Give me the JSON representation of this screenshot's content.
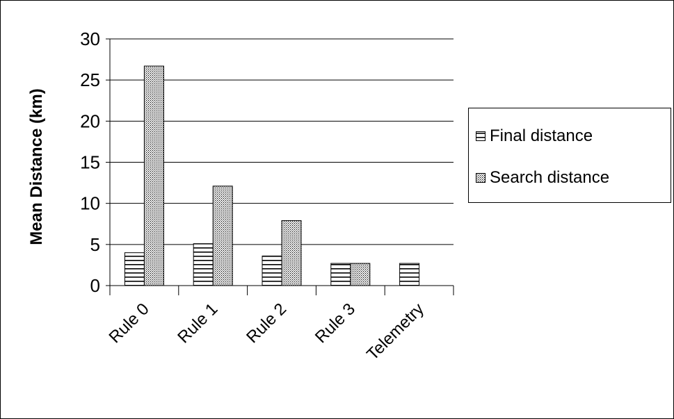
{
  "chart_data": {
    "type": "bar",
    "title": "",
    "xlabel": "",
    "ylabel": "Mean Distance (km)",
    "ylim": [
      0,
      30
    ],
    "yticks": [
      0,
      5,
      10,
      15,
      20,
      25,
      30
    ],
    "categories": [
      "Rule 0",
      "Rule 1",
      "Rule 2",
      "Rule 3",
      "Telemetry"
    ],
    "series": [
      {
        "name": "Final distance",
        "pattern": "horizontal-lines",
        "values": [
          4.0,
          5.1,
          3.6,
          2.7,
          2.7
        ]
      },
      {
        "name": "Search distance",
        "pattern": "dots",
        "values": [
          26.7,
          12.1,
          7.9,
          2.7,
          null
        ]
      }
    ],
    "grid": true,
    "legend_position": "right"
  },
  "legend": {
    "items": [
      {
        "label": "Final distance"
      },
      {
        "label": "Search distance"
      }
    ]
  }
}
